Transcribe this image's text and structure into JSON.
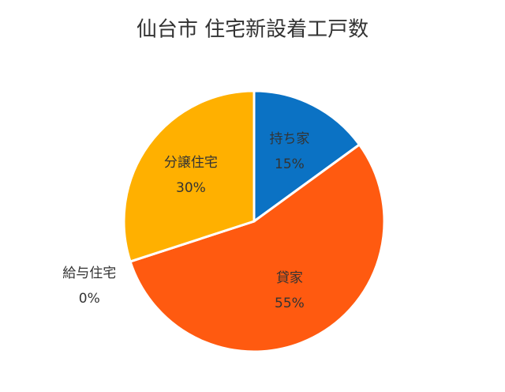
{
  "chart_data": {
    "type": "pie",
    "title": "仙台市 住宅新設着工戸数",
    "categories": [
      "持ち家",
      "貸家",
      "給与住宅",
      "分譲住宅"
    ],
    "values": [
      15,
      55,
      0,
      30
    ],
    "value_labels": [
      "15%",
      "55%",
      "0%",
      "30%"
    ],
    "colors": [
      "#0b72c4",
      "#ff5a10",
      "#a5a5a5",
      "#ffb000"
    ]
  }
}
